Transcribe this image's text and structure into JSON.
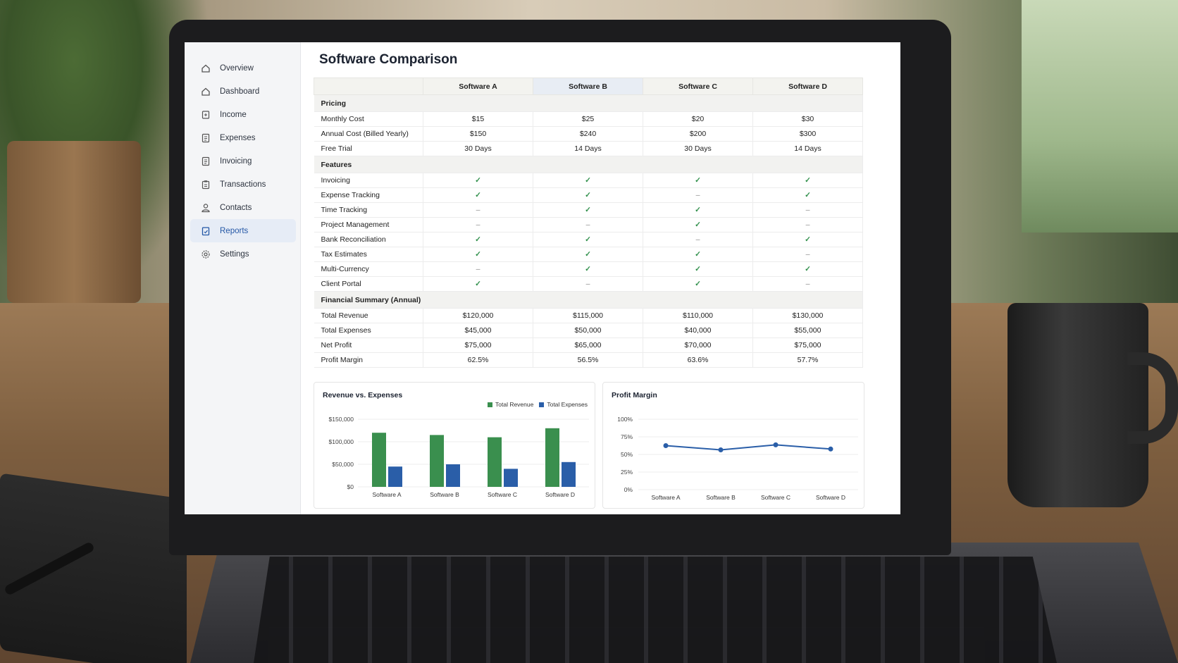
{
  "page_title": "Software Comparison",
  "sidebar": {
    "items": [
      {
        "label": "Overview",
        "icon": "home-icon",
        "active": false
      },
      {
        "label": "Dashboard",
        "icon": "home-icon",
        "active": false
      },
      {
        "label": "Income",
        "icon": "income-icon",
        "active": false
      },
      {
        "label": "Expenses",
        "icon": "document-icon",
        "active": false
      },
      {
        "label": "Invoicing",
        "icon": "document-icon",
        "active": false
      },
      {
        "label": "Transactions",
        "icon": "clipboard-icon",
        "active": false
      },
      {
        "label": "Contacts",
        "icon": "user-icon",
        "active": false
      },
      {
        "label": "Reports",
        "icon": "report-icon",
        "active": true
      },
      {
        "label": "Settings",
        "icon": "gear-icon",
        "active": false
      }
    ]
  },
  "table": {
    "columns": [
      "Software A",
      "Software B",
      "Software C",
      "Software D"
    ],
    "sections": [
      {
        "title": "Pricing",
        "rows": [
          {
            "label": "Monthly Cost",
            "values": [
              "$15",
              "$25",
              "$20",
              "$30"
            ]
          },
          {
            "label": "Annual Cost (Billed Yearly)",
            "values": [
              "$150",
              "$240",
              "$200",
              "$300"
            ]
          },
          {
            "label": "Free Trial",
            "values": [
              "30 Days",
              "14 Days",
              "30 Days",
              "14 Days"
            ]
          }
        ]
      },
      {
        "title": "Features",
        "rows": [
          {
            "label": "Invoicing",
            "values": [
              "✓",
              "✓",
              "✓",
              "✓"
            ]
          },
          {
            "label": "Expense Tracking",
            "values": [
              "✓",
              "✓",
              "–",
              "✓"
            ]
          },
          {
            "label": "Time Tracking",
            "values": [
              "–",
              "✓",
              "✓",
              "–"
            ]
          },
          {
            "label": "Project Management",
            "values": [
              "–",
              "–",
              "✓",
              "–"
            ]
          },
          {
            "label": "Bank Reconciliation",
            "values": [
              "✓",
              "✓",
              "–",
              "✓"
            ]
          },
          {
            "label": "Tax Estimates",
            "values": [
              "✓",
              "✓",
              "✓",
              "–"
            ]
          },
          {
            "label": "Multi-Currency",
            "values": [
              "–",
              "✓",
              "✓",
              "✓"
            ]
          },
          {
            "label": "Client Portal",
            "values": [
              "✓",
              "–",
              "✓",
              "–"
            ]
          }
        ]
      },
      {
        "title": "Financial Summary (Annual)",
        "rows": [
          {
            "label": "Total Revenue",
            "values": [
              "$120,000",
              "$115,000",
              "$110,000",
              "$130,000"
            ]
          },
          {
            "label": "Total Expenses",
            "values": [
              "$45,000",
              "$50,000",
              "$40,000",
              "$55,000"
            ]
          },
          {
            "label": "Net Profit",
            "values": [
              "$75,000",
              "$65,000",
              "$70,000",
              "$75,000"
            ]
          },
          {
            "label": "Profit Margin",
            "values": [
              "62.5%",
              "56.5%",
              "63.6%",
              "57.7%"
            ]
          }
        ]
      }
    ]
  },
  "chart_data": [
    {
      "type": "bar",
      "title": "Revenue vs. Expenses",
      "categories": [
        "Software A",
        "Software B",
        "Software C",
        "Software D"
      ],
      "series": [
        {
          "name": "Total Revenue",
          "values": [
            120000,
            115000,
            110000,
            130000
          ],
          "color": "#3a8f4e"
        },
        {
          "name": "Total Expenses",
          "values": [
            45000,
            50000,
            40000,
            55000
          ],
          "color": "#2a5ea8"
        }
      ],
      "ylim": [
        0,
        150000
      ],
      "yticks": [
        "$0",
        "$50,000",
        "$100,000",
        "$150,000"
      ],
      "legend": "top-right",
      "grid": true
    },
    {
      "type": "line",
      "title": "Profit Margin",
      "categories": [
        "Software A",
        "Software B",
        "Software C",
        "Software D"
      ],
      "series": [
        {
          "values": [
            62.5,
            56.5,
            63.6,
            57.7
          ],
          "color": "#2a5ea8"
        }
      ],
      "ylim": [
        0,
        100
      ],
      "yticks": [
        "0%",
        "25%",
        "50%",
        "75%",
        "100%"
      ],
      "grid": true
    }
  ]
}
